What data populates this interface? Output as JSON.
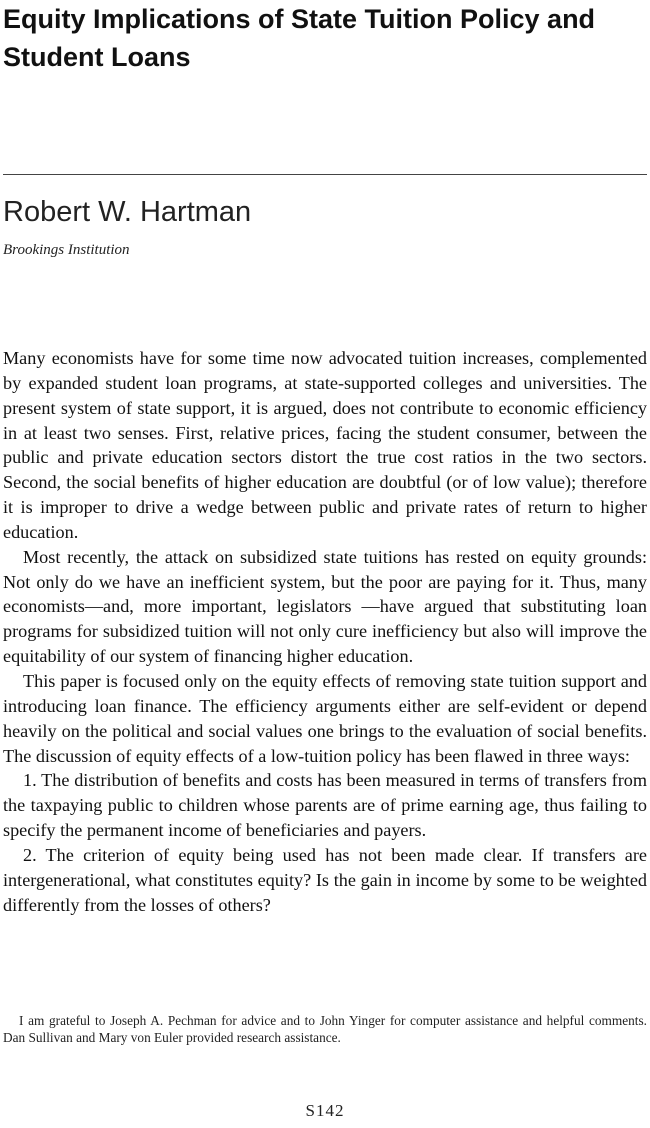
{
  "article": {
    "title": "Equity Implications of State Tuition Policy and Student Loans",
    "author": "Robert W. Hartman",
    "affiliation": "Brookings Institution"
  },
  "body": {
    "paragraphs": [
      "Many economists have for some time now advocated tuition increases, complemented by expanded student loan programs, at state-supported colleges and universities. The present system of state support, it is argued, does not contribute to economic efficiency in at least two senses. First, relative prices, facing the student consumer, between the public and private education sectors distort the true cost ratios in the two sectors. Second, the social benefits of higher education are doubtful (or of low value); therefore it is improper to drive a wedge between public and private rates of return to higher education.",
      "Most recently, the attack on subsidized state tuitions has rested on equity grounds: Not only do we have an inefficient system, but the poor are paying for it. Thus, many economists—and, more important, legislators —have argued that substituting loan programs for subsidized tuition will not only cure inefficiency but also will improve the equitability of our system of financing higher education.",
      "This paper is focused only on the equity effects of removing state tuition support and introducing loan finance. The efficiency arguments either are self-evident or depend heavily on the political and social values one brings to the evaluation of social benefits. The discussion of equity effects of a low-tuition policy has been flawed in three ways:",
      "1. The distribution of benefits and costs has been measured in terms of transfers from the taxpaying public to children whose parents are of prime earning age, thus failing to specify the permanent income of beneficiaries and payers.",
      "2. The criterion of equity being used has not been made clear. If transfers are intergenerational, what constitutes equity? Is the gain in income by some to be weighted differently from the losses of others?"
    ]
  },
  "footnote": "I am grateful to Joseph A. Pechman for advice and to John Yinger for computer assistance and helpful comments. Dan Sullivan and Mary von Euler provided research assistance.",
  "page_number": "S142"
}
